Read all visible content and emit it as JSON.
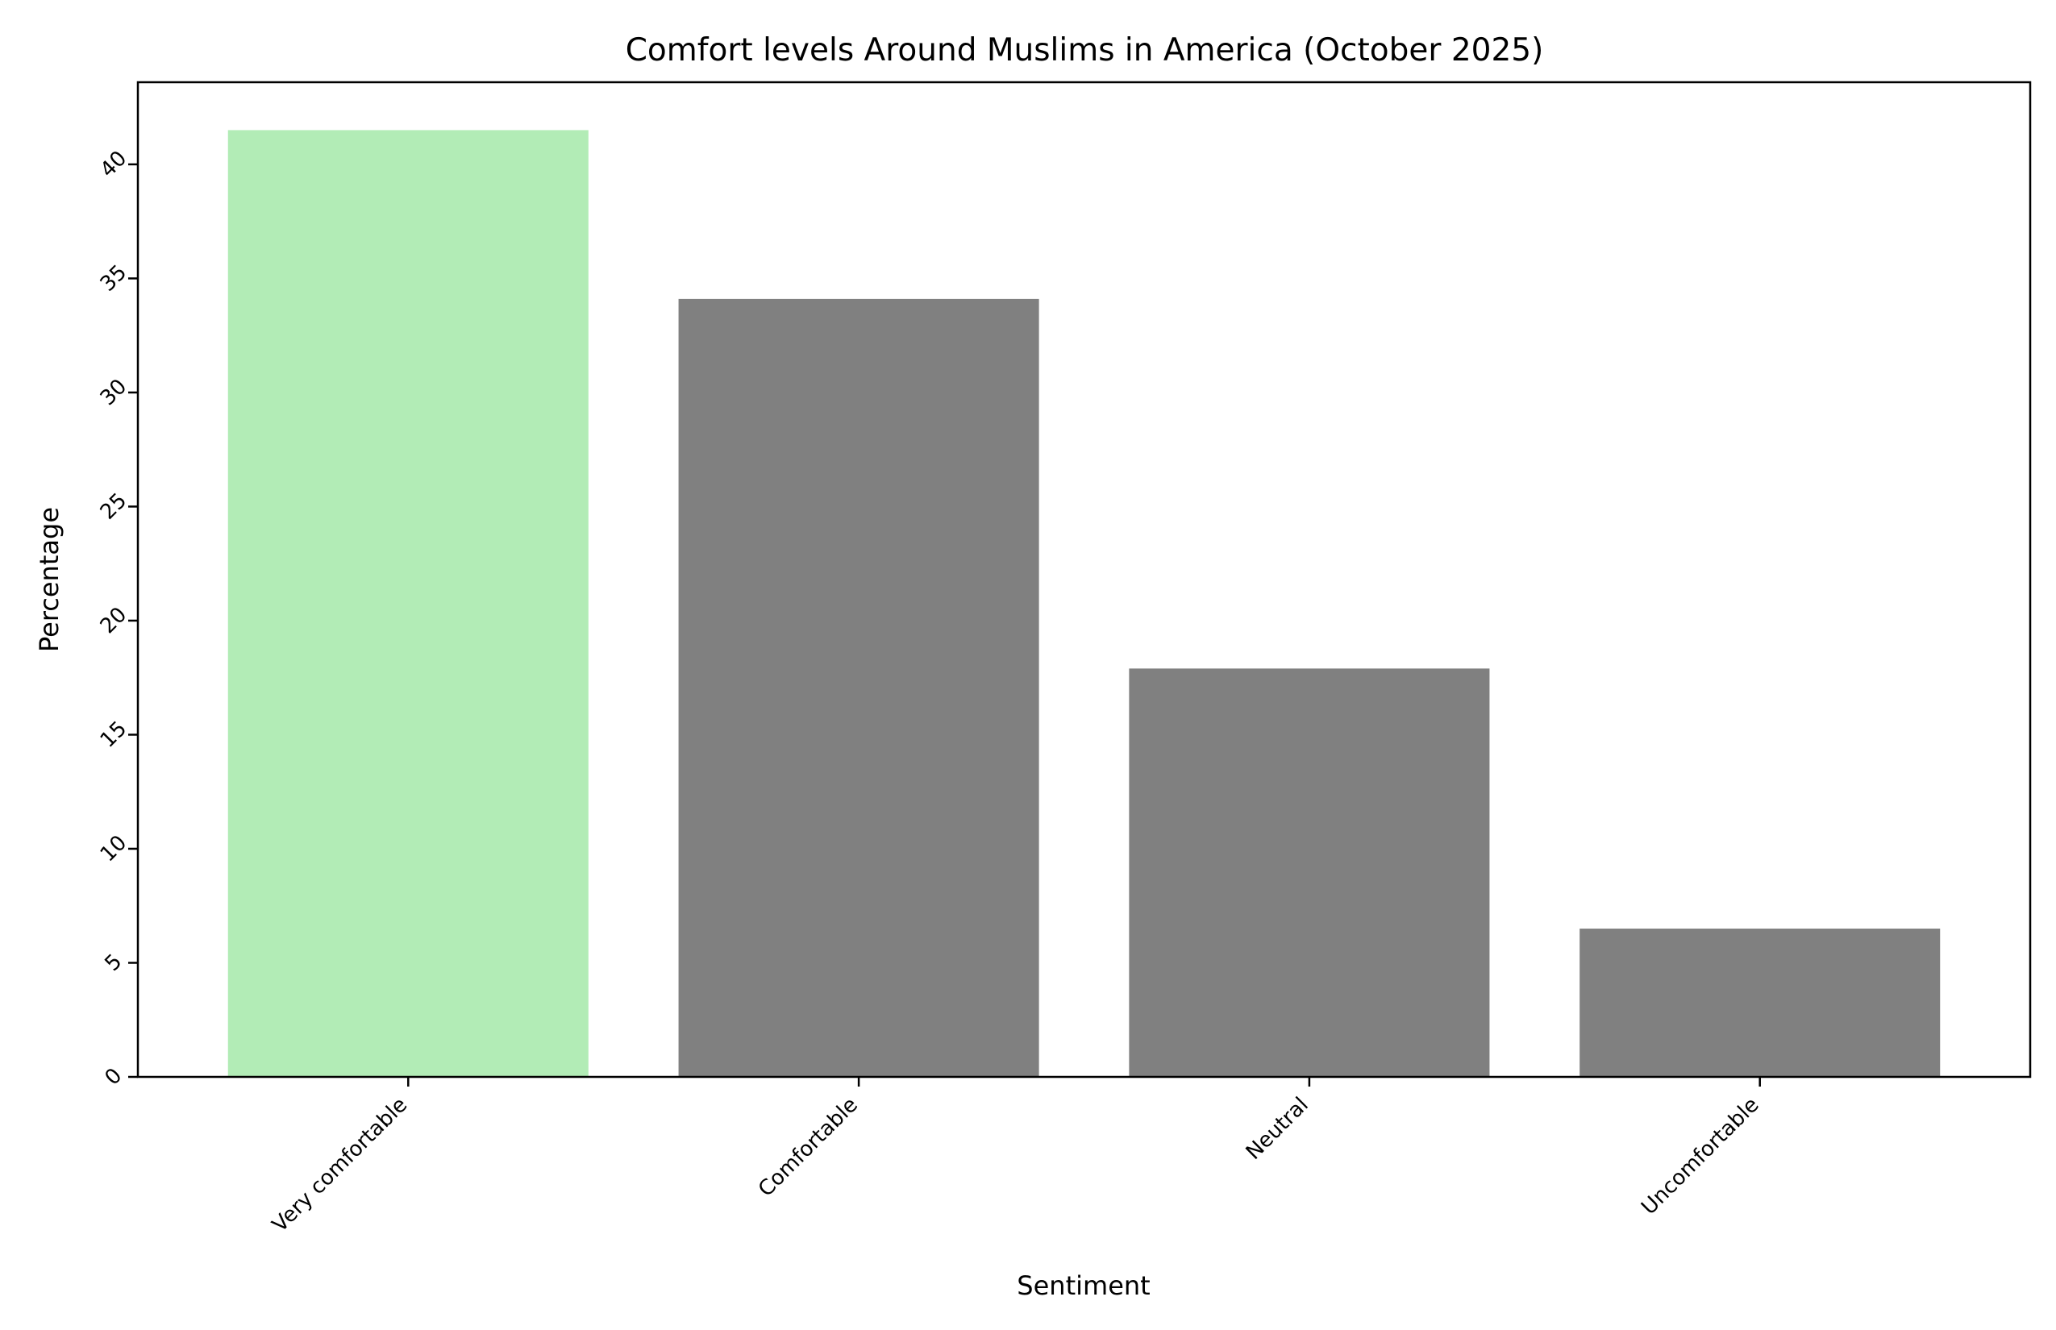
{
  "chart_data": {
    "type": "bar",
    "title": "Comfort levels Around Muslims in America (October 2025)",
    "xlabel": "Sentiment",
    "ylabel": "Percentage",
    "categories": [
      "Very comfortable",
      "Comfortable",
      "Neutral",
      "Uncomfortable"
    ],
    "values": [
      41.5,
      34.1,
      17.9,
      6.5
    ],
    "colors": [
      "#b2ecb6",
      "#808080",
      "#808080",
      "#808080"
    ],
    "ylim": [
      0,
      43.6
    ],
    "yticks": [
      0,
      5,
      10,
      15,
      20,
      25,
      30,
      35,
      40
    ],
    "ytick_labels": [
      "0",
      "5",
      "10",
      "15",
      "20",
      "25",
      "30",
      "35",
      "40"
    ],
    "grid": false,
    "legend": "none"
  }
}
